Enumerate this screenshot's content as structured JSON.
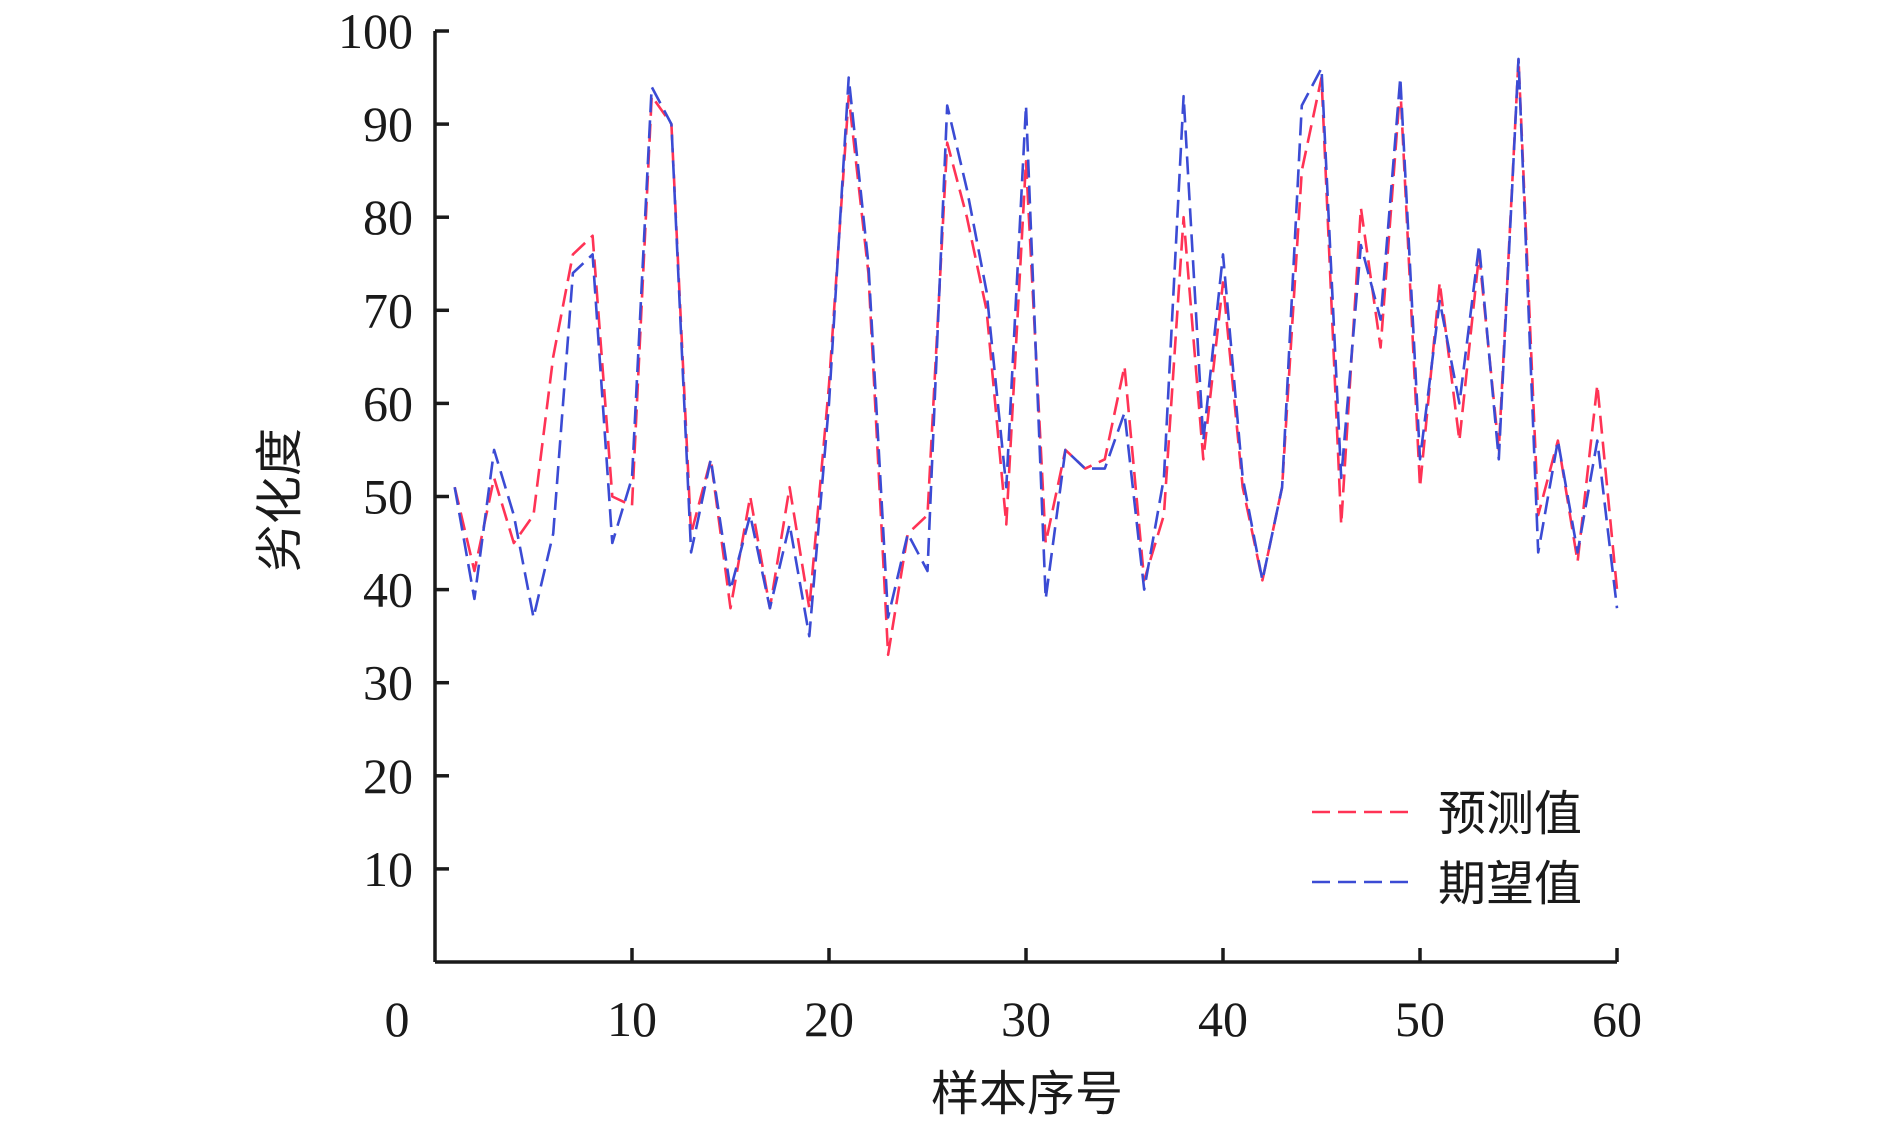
{
  "chart_data": {
    "type": "line",
    "xlabel": "样本序号",
    "ylabel": "劣化度",
    "xlim": [
      0,
      60
    ],
    "ylim": [
      0,
      100
    ],
    "xticks": [
      0,
      10,
      20,
      30,
      40,
      50,
      60
    ],
    "yticks": [
      10,
      20,
      30,
      40,
      50,
      60,
      70,
      80,
      90,
      100
    ],
    "grid": false,
    "legend_position": "bottom-right",
    "series": [
      {
        "name": "预测值",
        "color": "#ff3355",
        "x": [
          1,
          2,
          3,
          4,
          5,
          6,
          7,
          8,
          9,
          10,
          11,
          12,
          13,
          14,
          15,
          16,
          17,
          18,
          19,
          20,
          21,
          22,
          23,
          24,
          25,
          26,
          27,
          28,
          29,
          30,
          31,
          32,
          33,
          34,
          35,
          36,
          37,
          38,
          39,
          40,
          41,
          42,
          43,
          44,
          45,
          46,
          47,
          48,
          49,
          50,
          51,
          52,
          53,
          54,
          55,
          56,
          57,
          58,
          59,
          60
        ],
        "values": [
          51,
          42,
          52,
          45,
          48,
          65,
          76,
          78,
          50,
          49,
          93,
          90,
          46,
          54,
          38,
          50,
          38,
          51,
          38,
          62,
          93,
          74,
          33,
          46,
          48,
          88,
          80,
          70,
          47,
          86,
          45,
          55,
          53,
          54,
          64,
          41,
          48,
          80,
          54,
          73,
          51,
          41,
          51,
          85,
          95,
          47,
          81,
          66,
          94,
          51,
          73,
          56,
          76,
          55,
          97,
          48,
          56,
          43,
          62,
          40
        ]
      },
      {
        "name": "期望值",
        "color": "#3b4bd4",
        "x": [
          1,
          2,
          3,
          4,
          5,
          6,
          7,
          8,
          9,
          10,
          11,
          12,
          13,
          14,
          15,
          16,
          17,
          18,
          19,
          20,
          21,
          22,
          23,
          24,
          25,
          26,
          27,
          28,
          29,
          30,
          31,
          32,
          33,
          34,
          35,
          36,
          37,
          38,
          39,
          40,
          41,
          42,
          43,
          44,
          45,
          46,
          47,
          48,
          49,
          50,
          51,
          52,
          53,
          54,
          55,
          56,
          57,
          58,
          59,
          60
        ],
        "values": [
          51,
          39,
          55,
          48,
          37,
          46,
          74,
          76,
          45,
          52,
          94,
          90,
          44,
          54,
          40,
          48,
          38,
          47,
          35,
          60,
          95,
          75,
          37,
          46,
          42,
          92,
          83,
          72,
          51,
          92,
          39,
          55,
          53,
          53,
          59,
          40,
          52,
          93,
          56,
          76,
          52,
          41,
          51,
          92,
          96,
          52,
          77,
          69,
          95,
          54,
          71,
          60,
          77,
          54,
          97,
          44,
          56,
          44,
          56,
          38
        ]
      }
    ]
  }
}
